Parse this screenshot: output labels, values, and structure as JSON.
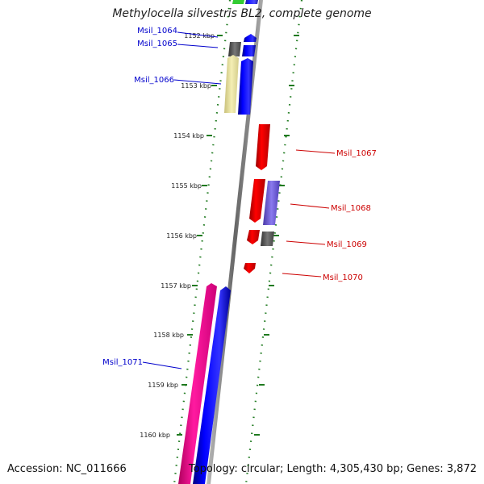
{
  "header": {
    "title": "Methylocella silvestris BL2, complete genome"
  },
  "footer": {
    "accession": "Accession: NC_011666",
    "topology": "Topology: circular; Length: 4,305,430 bp; Genes: 3,872"
  },
  "colors": {
    "axis_line": "#808080",
    "tick_marks": "#1f7a1f",
    "forward_label": "#0000cc",
    "reverse_label": "#cc0000",
    "gene_blue": "#0000ff",
    "gene_red": "#ff0000",
    "gene_gray": "#666666",
    "gene_yellow": "#eee8a0",
    "gene_purple": "#7060d8",
    "gene_pink": "#ff1aa0",
    "gene_green": "#33cc33",
    "gene_lavender": "#c8c8ff"
  },
  "scale": {
    "ticks": [
      {
        "label": "1152 kbp"
      },
      {
        "label": "1153 kbp"
      },
      {
        "label": "1154 kbp"
      },
      {
        "label": "1155 kbp"
      },
      {
        "label": "1156 kbp"
      },
      {
        "label": "1157 kbp"
      },
      {
        "label": "1158 kbp"
      },
      {
        "label": "1159 kbp"
      },
      {
        "label": "1160 kbp"
      }
    ]
  },
  "gene_labels": {
    "forward": [
      {
        "name": "Msil_1064"
      },
      {
        "name": "Msil_1065"
      },
      {
        "name": "Msil_1066"
      },
      {
        "name": "Msil_1071"
      }
    ],
    "reverse": [
      {
        "name": "Msil_1067"
      },
      {
        "name": "Msil_1068"
      },
      {
        "name": "Msil_1069"
      },
      {
        "name": "Msil_1070"
      }
    ]
  }
}
